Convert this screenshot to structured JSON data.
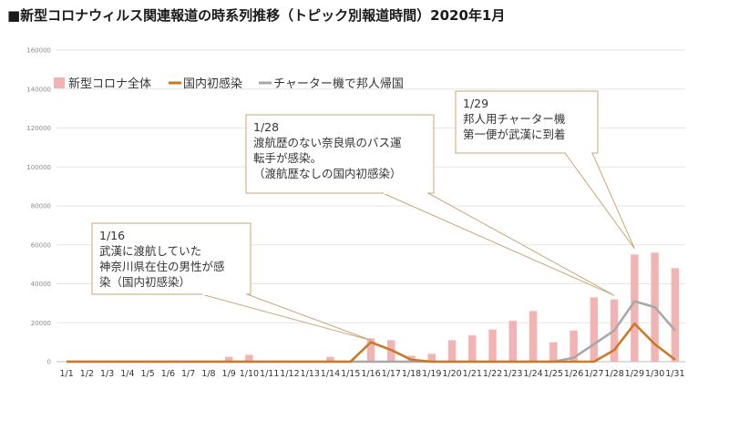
{
  "chart_data": {
    "type": "bar",
    "title": "■新型コロナウィルス関連報道の時系列推移（トピック別報道時間）2020年1月",
    "categories": [
      "1/1",
      "1/2",
      "1/3",
      "1/4",
      "1/5",
      "1/6",
      "1/7",
      "1/8",
      "1/9",
      "1/10",
      "1/11",
      "1/12",
      "1/13",
      "1/14",
      "1/15",
      "1/16",
      "1/17",
      "1/18",
      "1/19",
      "1/20",
      "1/21",
      "1/22",
      "1/23",
      "1/24",
      "1/25",
      "1/26",
      "1/27",
      "1/28",
      "1/29",
      "1/30",
      "1/31"
    ],
    "ylim": [
      0,
      160000
    ],
    "y_ticks": [
      "0",
      "20000",
      "40000",
      "60000",
      "80000",
      "100000",
      "120000",
      "140000",
      "160000"
    ],
    "grid": true,
    "legend_position": "top-left",
    "series": [
      {
        "name": "新型コロナ全体",
        "kind": "bar",
        "color": "#f2b3b3",
        "values": [
          0,
          0,
          0,
          0,
          0,
          0,
          500,
          500,
          2500,
          3500,
          500,
          0,
          0,
          2500,
          0,
          12000,
          11000,
          3000,
          4000,
          11000,
          13500,
          16500,
          21000,
          26000,
          10000,
          16000,
          33000,
          32000,
          55000,
          56000,
          48000
        ]
      },
      {
        "name": "国内初感染",
        "kind": "line",
        "color": "#c97a28",
        "values": [
          0,
          0,
          0,
          0,
          0,
          0,
          0,
          0,
          0,
          0,
          0,
          0,
          0,
          0,
          0,
          10000,
          6000,
          1000,
          0,
          0,
          0,
          0,
          0,
          0,
          0,
          0,
          0,
          6000,
          19500,
          9000,
          1000
        ]
      },
      {
        "name": "チャーター機で邦人帰国",
        "kind": "line",
        "color": "#a8a8a8",
        "values": [
          0,
          0,
          0,
          0,
          0,
          0,
          0,
          0,
          0,
          0,
          0,
          0,
          0,
          0,
          0,
          0,
          0,
          0,
          0,
          0,
          0,
          0,
          0,
          0,
          0,
          2000,
          9000,
          16000,
          31000,
          28000,
          16000
        ]
      }
    ],
    "annotations": [
      {
        "lines": [
          "1/16",
          "武漢に渡航していた",
          "神奈川県在住の男性が感",
          "染（国内初感染）"
        ],
        "target": "1/16"
      },
      {
        "lines": [
          "1/28",
          "渡航歴のない奈良県のバス運",
          "転手が感染。",
          "（渡航歴なしの国内初感染）"
        ],
        "target": "1/28"
      },
      {
        "lines": [
          "1/29",
          "邦人用チャーター機",
          "第一便が武漢に到着"
        ],
        "target": "1/29"
      }
    ]
  }
}
